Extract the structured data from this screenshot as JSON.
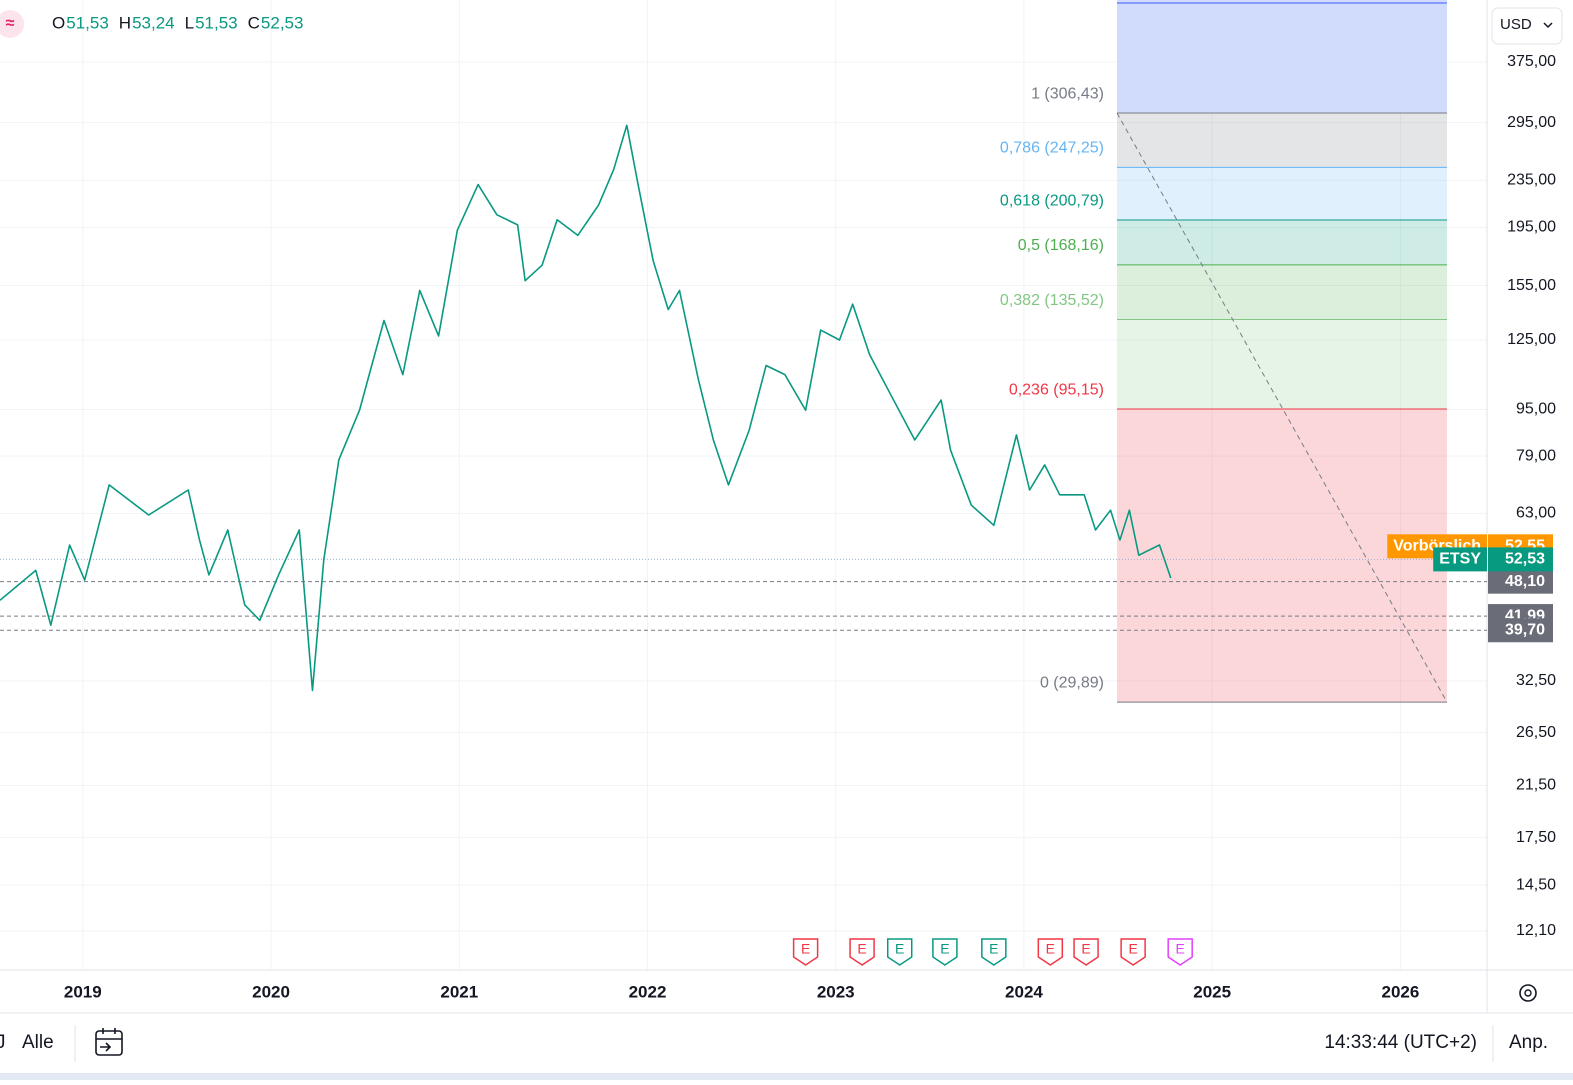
{
  "symbol_icon": "≈",
  "ohlc": [
    {
      "name": "O",
      "value": 51.53,
      "label": "51,53"
    },
    {
      "name": "H",
      "value": 53.24,
      "label": "53,24"
    },
    {
      "name": "L",
      "value": 51.53,
      "label": "51,53"
    },
    {
      "name": "C",
      "value": 52.53,
      "label": "52,53"
    }
  ],
  "currency": "USD",
  "toolbar": {
    "interval": "J",
    "range": "Alle",
    "time": "14:33:44 (UTC+2)",
    "adjust": "Anp."
  },
  "chart_data": {
    "type": "line",
    "log_scale": true,
    "grid": true,
    "x": [
      2018.56,
      2018.75,
      2018.83,
      2018.93,
      2019.01,
      2019.14,
      2019.35,
      2019.56,
      2019.62,
      2019.67,
      2019.77,
      2019.86,
      2019.94,
      2020.04,
      2020.15,
      2020.22,
      2020.28,
      2020.36,
      2020.47,
      2020.6,
      2020.7,
      2020.79,
      2020.89,
      2020.99,
      2021.1,
      2021.2,
      2021.31,
      2021.35,
      2021.44,
      2021.52,
      2021.63,
      2021.74,
      2021.82,
      2021.89,
      2021.95,
      2022.03,
      2022.11,
      2022.17,
      2022.27,
      2022.35,
      2022.43,
      2022.54,
      2022.63,
      2022.73,
      2022.84,
      2022.92,
      2023.02,
      2023.09,
      2023.18,
      2023.29,
      2023.42,
      2023.56,
      2023.61,
      2023.72,
      2023.84,
      2023.96,
      2024.03,
      2024.11,
      2024.19,
      2024.32,
      2024.38,
      2024.46,
      2024.51,
      2024.56,
      2024.61,
      2024.72,
      2024.78
    ],
    "series": [
      {
        "name": "ETSY",
        "color": "#089981",
        "values": [
          44.7,
          50.3,
          40.5,
          55.6,
          48.4,
          70.5,
          62.6,
          69.1,
          56.7,
          49.4,
          59.0,
          43.9,
          41.3,
          49.4,
          59.0,
          31.3,
          52.4,
          77.8,
          94.7,
          135,
          109,
          152,
          127,
          193,
          231,
          205,
          197,
          158,
          168,
          201,
          189,
          213,
          245,
          292,
          231,
          171,
          141,
          152,
          107,
          84.2,
          70.5,
          87.5,
          113,
          109,
          94.7,
          130,
          125,
          144,
          118,
          101,
          84.2,
          98.6,
          80.9,
          65.1,
          60.1,
          85.9,
          69.1,
          76.3,
          67.8,
          67.8,
          59.0,
          63.8,
          56.7,
          63.8,
          53.4,
          55.6,
          48.8
        ]
      }
    ],
    "last_price": {
      "value": 52.53,
      "label": "52,53"
    },
    "premarket": {
      "name": "Vorbörslich",
      "value": 52.55,
      "label": "52,55",
      "color": "#ff9800"
    },
    "price_lines": [
      {
        "value": 48.1,
        "label": "48,10"
      },
      {
        "value": 41.99,
        "label": "41,99"
      },
      {
        "value": 39.7,
        "label": "39,70"
      }
    ],
    "fib": {
      "extension_color": "#d1dcfd",
      "levels": [
        {
          "value": 306.43,
          "label": "1 (306,43)",
          "color": "#787b86"
        },
        {
          "value": 247.25,
          "label": "0,786 (247,25)",
          "color": "#64b5f6"
        },
        {
          "value": 200.79,
          "label": "0,618 (200,79)",
          "color": "#089981"
        },
        {
          "value": 168.16,
          "label": "0,5 (168,16)",
          "color": "#4caf50"
        },
        {
          "value": 135.52,
          "label": "0,382 (135,52)",
          "color": "#81c784"
        },
        {
          "value": 95.15,
          "label": "0,236 (95,15)",
          "color": "#f23645"
        },
        {
          "value": 29.89,
          "label": "0 (29,89)",
          "color": "#787b86"
        }
      ]
    },
    "events": [
      {
        "x": 2022.84,
        "label": "E",
        "color": "#f23645"
      },
      {
        "x": 2023.14,
        "label": "E",
        "color": "#f23645"
      },
      {
        "x": 2023.34,
        "label": "E",
        "color": "#089981"
      },
      {
        "x": 2023.58,
        "label": "E",
        "color": "#089981"
      },
      {
        "x": 2023.84,
        "label": "E",
        "color": "#089981"
      },
      {
        "x": 2024.14,
        "label": "E",
        "color": "#f23645"
      },
      {
        "x": 2024.33,
        "label": "E",
        "color": "#f23645"
      },
      {
        "x": 2024.58,
        "label": "E",
        "color": "#f23645"
      },
      {
        "x": 2024.83,
        "label": "E",
        "color": "#e040fb"
      }
    ],
    "xlim": [
      2018.56,
      2026.46
    ],
    "xticks": [
      2019,
      2020,
      2021,
      2022,
      2023,
      2024,
      2025,
      2026
    ],
    "ylim": [
      10.37,
      479
    ],
    "yticks": [
      {
        "value": 375,
        "label": "375,00"
      },
      {
        "value": 295,
        "label": "295,00"
      },
      {
        "value": 235,
        "label": "235,00"
      },
      {
        "value": 195,
        "label": "195,00"
      },
      {
        "value": 155,
        "label": "155,00"
      },
      {
        "value": 125,
        "label": "125,00"
      },
      {
        "value": 95,
        "label": "95,00"
      },
      {
        "value": 79,
        "label": "79,00"
      },
      {
        "value": 63,
        "label": "63,00"
      },
      {
        "value": 32.5,
        "label": "32,50"
      },
      {
        "value": 26.5,
        "label": "26,50"
      },
      {
        "value": 21.5,
        "label": "21,50"
      },
      {
        "value": 17.5,
        "label": "17,50"
      },
      {
        "value": 14.5,
        "label": "14,50"
      },
      {
        "value": 12.1,
        "label": "12,10"
      }
    ]
  }
}
